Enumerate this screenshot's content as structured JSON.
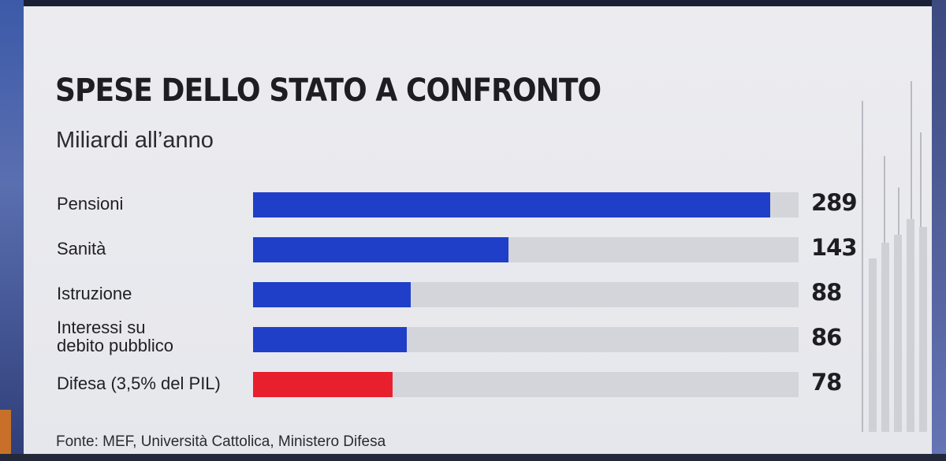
{
  "chart_data": {
    "type": "bar",
    "orientation": "horizontal",
    "title": "SPESE DELLO STATO A CONFRONTO",
    "subtitle": "Miliardi all’anno",
    "categories": [
      "Pensioni",
      "Sanità",
      "Istruzione",
      "Interessi su debito pubblico",
      "Difesa (3,5% del PIL)"
    ],
    "values": [
      289,
      143,
      88,
      86,
      78
    ],
    "value_labels": [
      "289",
      "143",
      "88",
      "86",
      "78"
    ],
    "colors": [
      "#1f3fc9",
      "#1f3fc9",
      "#1f3fc9",
      "#1f3fc9",
      "#e8202e"
    ],
    "xlim": [
      0,
      305
    ],
    "grid": false,
    "source": "Fonte: MEF, Università Cattolica, Ministero Difesa"
  }
}
